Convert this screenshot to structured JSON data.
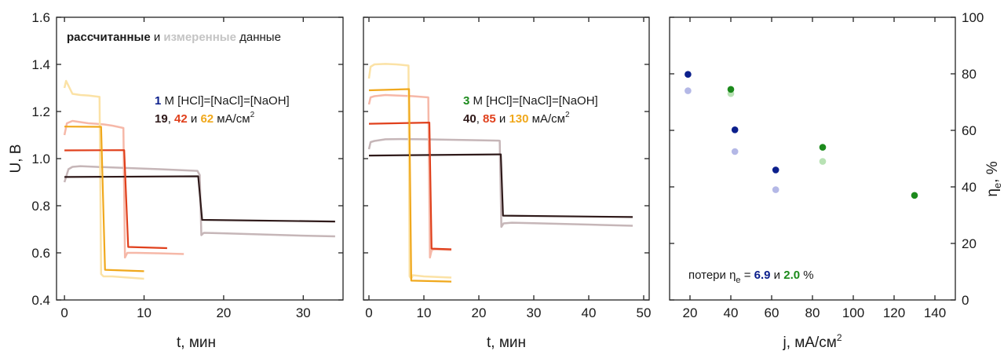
{
  "colors": {
    "c1": "#2f1a1a",
    "c2": "#e0401c",
    "c3": "#f0a81c",
    "navy": "#0b1f8c",
    "green": "#1c8a1c",
    "navy_light": "#b4b8e6",
    "green_light": "#b8e2b4",
    "c1_light": "#c6b6b8",
    "c2_light": "#f6b8a8",
    "c3_light": "#fbe2a6",
    "grey_text": "#c4c4c4"
  },
  "chart_data": [
    {
      "type": "line",
      "xlabel": "t, мин",
      "ylabel": "U, В",
      "xlim": [
        -1,
        35
      ],
      "ylim": [
        0.4,
        1.6
      ],
      "xticks": [
        0,
        10,
        20,
        30
      ],
      "yticks": [
        0.4,
        0.6,
        0.8,
        1.0,
        1.2,
        1.4,
        1.6
      ],
      "ytick_labels": [
        "0.4",
        "0.6",
        "0.8",
        "1.0",
        "1.2",
        "1.4",
        "1.6"
      ],
      "annotations": {
        "legend_line": {
          "bold1": "рассчитанные",
          "mid": " и ",
          "grey": "измеренные",
          "end": " данные"
        },
        "conc": {
          "num": "1",
          "rest": " М [HCl]=[NaCl]=[NaOH]"
        },
        "currents": {
          "v1": "19",
          "sep1": ", ",
          "v2": "42",
          "sep2": " и ",
          "v3": "62",
          "unit": " мА/см",
          "sup": "2"
        }
      },
      "series": [
        {
          "name": "19 мА/см2 measured",
          "color": "c1_light",
          "width": 2.5,
          "x": [
            0,
            0.5,
            1,
            2,
            4,
            8,
            12,
            16.7,
            17,
            17.2,
            17.5,
            20,
            25,
            30,
            34
          ],
          "y": [
            0.9,
            0.955,
            0.965,
            0.968,
            0.965,
            0.96,
            0.955,
            0.948,
            0.93,
            0.675,
            0.685,
            0.683,
            0.678,
            0.673,
            0.67
          ]
        },
        {
          "name": "42 мА/см2 measured",
          "color": "c2_light",
          "width": 2.5,
          "x": [
            0,
            0.3,
            1,
            2,
            3,
            4,
            5,
            6,
            7.4,
            7.6,
            7.9,
            9,
            12,
            15
          ],
          "y": [
            1.1,
            1.15,
            1.16,
            1.155,
            1.15,
            1.148,
            1.145,
            1.14,
            1.13,
            0.58,
            0.6,
            0.6,
            0.598,
            0.595
          ]
        },
        {
          "name": "62 мА/см2 measured",
          "color": "c3_light",
          "width": 2.5,
          "x": [
            0,
            0.2,
            1,
            2,
            3,
            4.4,
            4.6,
            4.9,
            6,
            8,
            10
          ],
          "y": [
            1.3,
            1.33,
            1.275,
            1.27,
            1.268,
            1.262,
            0.51,
            0.5,
            0.5,
            0.495,
            0.49
          ]
        },
        {
          "name": "19 мА/см2 calculated",
          "color": "c1",
          "width": 2.2,
          "x": [
            0,
            16.8,
            17.3,
            34
          ],
          "y": [
            0.922,
            0.925,
            0.74,
            0.733
          ]
        },
        {
          "name": "42 мА/см2 calculated",
          "color": "c2",
          "width": 2.2,
          "x": [
            0,
            7.5,
            8,
            12.9
          ],
          "y": [
            1.035,
            1.036,
            0.625,
            0.62
          ]
        },
        {
          "name": "62 мА/см2 calculated",
          "color": "c3",
          "width": 2.2,
          "x": [
            0,
            4.6,
            5.1,
            10
          ],
          "y": [
            1.136,
            1.135,
            0.528,
            0.522
          ]
        }
      ]
    },
    {
      "type": "line",
      "xlabel": "t, мин",
      "ylabel": "",
      "xlim": [
        -1,
        51
      ],
      "ylim": [
        0.4,
        1.6
      ],
      "xticks": [
        0,
        10,
        20,
        30,
        40,
        50
      ],
      "yticks": [
        0.4,
        0.6,
        0.8,
        1.0,
        1.2,
        1.4,
        1.6
      ],
      "annotations": {
        "conc": {
          "num": "3",
          "rest": " М [HCl]=[NaCl]=[NaOH]"
        },
        "currents": {
          "v1": "40",
          "sep1": ", ",
          "v2": "85",
          "sep2": " и ",
          "v3": "130",
          "unit": " мА/см",
          "sup": "2"
        }
      },
      "series": [
        {
          "name": "40 мА/см2 measured",
          "color": "c1_light",
          "width": 2.5,
          "x": [
            0,
            0.3,
            1,
            3,
            6,
            10,
            15,
            20,
            23.8,
            24.1,
            24.5,
            26,
            30,
            40,
            48
          ],
          "y": [
            1.04,
            1.07,
            1.075,
            1.082,
            1.083,
            1.082,
            1.08,
            1.078,
            1.076,
            0.71,
            0.725,
            0.728,
            0.726,
            0.72,
            0.715
          ]
        },
        {
          "name": "85 мА/см2 measured",
          "color": "c2_light",
          "width": 2.5,
          "x": [
            0,
            0.3,
            1,
            3,
            5,
            8,
            10.8,
            11.1,
            11.4,
            11.8,
            15
          ],
          "y": [
            1.23,
            1.26,
            1.265,
            1.27,
            1.268,
            1.265,
            1.26,
            0.58,
            0.61,
            0.615,
            0.612
          ]
        },
        {
          "name": "130 мА/см2 measured",
          "color": "c3_light",
          "width": 2.5,
          "x": [
            0,
            0.3,
            1,
            3,
            5,
            7.2,
            7.4,
            7.7,
            8,
            10,
            15
          ],
          "y": [
            1.34,
            1.39,
            1.4,
            1.402,
            1.4,
            1.395,
            0.5,
            0.49,
            0.505,
            0.5,
            0.495
          ]
        },
        {
          "name": "40 мА/см2 calculated",
          "color": "c1",
          "width": 2.2,
          "x": [
            0,
            24,
            24.4,
            48
          ],
          "y": [
            1.013,
            1.018,
            0.758,
            0.752
          ]
        },
        {
          "name": "85 мА/см2 calculated",
          "color": "c2",
          "width": 2.2,
          "x": [
            0,
            11,
            11.4,
            15
          ],
          "y": [
            1.148,
            1.153,
            0.618,
            0.615
          ]
        },
        {
          "name": "130 мА/см2 calculated",
          "color": "c3",
          "width": 2.2,
          "x": [
            0,
            7.3,
            7.7,
            15
          ],
          "y": [
            1.29,
            1.295,
            0.482,
            0.478
          ]
        }
      ]
    },
    {
      "type": "scatter",
      "xlabel": {
        "text": "j, мА/см",
        "sup": "2"
      },
      "ylabel": {
        "main": "η",
        "sub": "e",
        "rest": ", %"
      },
      "xlim": [
        10,
        150
      ],
      "ylim": [
        0,
        100
      ],
      "xticks": [
        20,
        40,
        60,
        80,
        100,
        120,
        140
      ],
      "yticks": [
        0,
        20,
        40,
        60,
        80,
        100
      ],
      "annotations": {
        "loss": {
          "pre": "потери η",
          "sub": "e",
          "eq": " = ",
          "v1": "6.9",
          "mid": " и ",
          "v2": "2.0",
          "end": " %"
        }
      },
      "series": [
        {
          "name": "1 М light",
          "color": "navy_light",
          "x": [
            19,
            42,
            62
          ],
          "y": [
            74,
            52.5,
            39
          ]
        },
        {
          "name": "3 М light",
          "color": "green_light",
          "x": [
            40,
            85
          ],
          "y": [
            73,
            49
          ]
        },
        {
          "name": "1 М",
          "color": "navy",
          "x": [
            19,
            42,
            62
          ],
          "y": [
            79.8,
            60.2,
            46
          ]
        },
        {
          "name": "3 М",
          "color": "green",
          "x": [
            40,
            85,
            130
          ],
          "y": [
            74.5,
            54,
            37
          ]
        }
      ]
    }
  ]
}
